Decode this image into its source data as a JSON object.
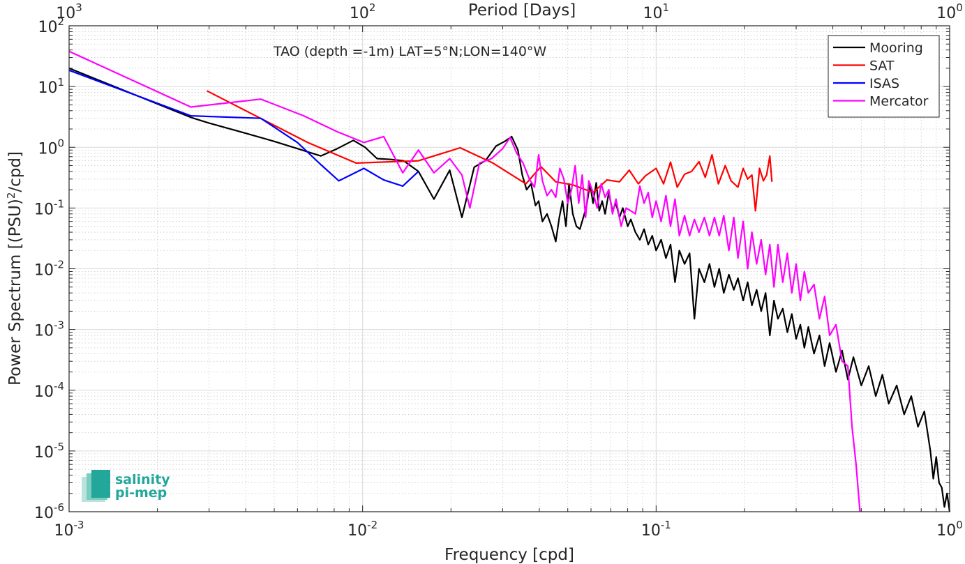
{
  "chart_data": {
    "type": "line",
    "title": "",
    "annotation": "TAO (depth =-1m) LAT=5°N;LON=140°W",
    "xlabel": "Frequency [cpd]",
    "ylabel_main": "Power Spectrum [(PSU)",
    "ylabel_sup": "2",
    "ylabel_tail": "/cpd]",
    "top_xlabel": "Period [Days]",
    "xscale": "log",
    "yscale": "log",
    "xlim": [
      0.001,
      1
    ],
    "ylim": [
      1e-06,
      100
    ],
    "top_xlim": [
      1000,
      1
    ],
    "grid": true,
    "minor_grid": true,
    "legend_position": "top-right",
    "x_ticks": [
      {
        "value": 0.001,
        "base": "10",
        "exp": "-3"
      },
      {
        "value": 0.01,
        "base": "10",
        "exp": "-2"
      },
      {
        "value": 0.1,
        "base": "10",
        "exp": "-1"
      },
      {
        "value": 1,
        "base": "10",
        "exp": "0"
      }
    ],
    "top_ticks": [
      {
        "value": 1000,
        "base": "10",
        "exp": "3"
      },
      {
        "value": 100,
        "base": "10",
        "exp": "2"
      },
      {
        "value": 10,
        "base": "10",
        "exp": "1"
      },
      {
        "value": 1,
        "base": "10",
        "exp": "0"
      }
    ],
    "y_ticks": [
      {
        "value": 100,
        "base": "10",
        "exp": "2"
      },
      {
        "value": 10,
        "base": "10",
        "exp": "1"
      },
      {
        "value": 1,
        "base": "10",
        "exp": "0"
      },
      {
        "value": 0.1,
        "base": "10",
        "exp": "-1"
      },
      {
        "value": 0.01,
        "base": "10",
        "exp": "-2"
      },
      {
        "value": 0.001,
        "base": "10",
        "exp": "-3"
      },
      {
        "value": 0.0001,
        "base": "10",
        "exp": "-4"
      },
      {
        "value": 1e-05,
        "base": "10",
        "exp": "-5"
      },
      {
        "value": 1e-06,
        "base": "10",
        "exp": "-6"
      }
    ],
    "series": [
      {
        "name": "Mooring",
        "color": "#000000",
        "points": [
          [
            0.001,
            20
          ],
          [
            0.0026,
            3.1
          ],
          [
            0.003,
            2.5
          ],
          [
            0.004,
            1.7
          ],
          [
            0.005,
            1.25
          ],
          [
            0.006,
            0.95
          ],
          [
            0.0072,
            0.72
          ],
          [
            0.0082,
            0.95
          ],
          [
            0.0093,
            1.3
          ],
          [
            0.0102,
            1.0
          ],
          [
            0.0112,
            0.65
          ],
          [
            0.0125,
            0.63
          ],
          [
            0.0138,
            0.6
          ],
          [
            0.0155,
            0.4
          ],
          [
            0.0175,
            0.14
          ],
          [
            0.0198,
            0.42
          ],
          [
            0.0218,
            0.07
          ],
          [
            0.024,
            0.47
          ],
          [
            0.0262,
            0.6
          ],
          [
            0.0285,
            1.05
          ],
          [
            0.0305,
            1.25
          ],
          [
            0.0322,
            1.5
          ],
          [
            0.0338,
            0.9
          ],
          [
            0.035,
            0.35
          ],
          [
            0.0362,
            0.2
          ],
          [
            0.0375,
            0.25
          ],
          [
            0.0388,
            0.11
          ],
          [
            0.0398,
            0.13
          ],
          [
            0.041,
            0.06
          ],
          [
            0.0425,
            0.08
          ],
          [
            0.044,
            0.05
          ],
          [
            0.0455,
            0.028
          ],
          [
            0.0468,
            0.07
          ],
          [
            0.048,
            0.13
          ],
          [
            0.0493,
            0.05
          ],
          [
            0.0505,
            0.25
          ],
          [
            0.052,
            0.08
          ],
          [
            0.0535,
            0.05
          ],
          [
            0.055,
            0.045
          ],
          [
            0.0565,
            0.07
          ],
          [
            0.058,
            0.11
          ],
          [
            0.0595,
            0.25
          ],
          [
            0.061,
            0.12
          ],
          [
            0.0625,
            0.26
          ],
          [
            0.064,
            0.09
          ],
          [
            0.0655,
            0.13
          ],
          [
            0.067,
            0.08
          ],
          [
            0.069,
            0.18
          ],
          [
            0.071,
            0.09
          ],
          [
            0.073,
            0.12
          ],
          [
            0.075,
            0.07
          ],
          [
            0.077,
            0.1
          ],
          [
            0.08,
            0.05
          ],
          [
            0.082,
            0.065
          ],
          [
            0.085,
            0.04
          ],
          [
            0.088,
            0.03
          ],
          [
            0.091,
            0.045
          ],
          [
            0.094,
            0.025
          ],
          [
            0.097,
            0.035
          ],
          [
            0.1,
            0.02
          ],
          [
            0.104,
            0.03
          ],
          [
            0.108,
            0.015
          ],
          [
            0.112,
            0.025
          ],
          [
            0.116,
            0.006
          ],
          [
            0.12,
            0.02
          ],
          [
            0.125,
            0.012
          ],
          [
            0.13,
            0.018
          ],
          [
            0.135,
            0.0015
          ],
          [
            0.14,
            0.01
          ],
          [
            0.146,
            0.006
          ],
          [
            0.152,
            0.012
          ],
          [
            0.158,
            0.005
          ],
          [
            0.164,
            0.01
          ],
          [
            0.17,
            0.004
          ],
          [
            0.177,
            0.008
          ],
          [
            0.184,
            0.0045
          ],
          [
            0.19,
            0.007
          ],
          [
            0.198,
            0.003
          ],
          [
            0.205,
            0.006
          ],
          [
            0.212,
            0.0025
          ],
          [
            0.22,
            0.0045
          ],
          [
            0.228,
            0.002
          ],
          [
            0.236,
            0.004
          ],
          [
            0.244,
            0.0008
          ],
          [
            0.252,
            0.003
          ],
          [
            0.26,
            0.0015
          ],
          [
            0.27,
            0.0022
          ],
          [
            0.28,
            0.0009
          ],
          [
            0.29,
            0.0018
          ],
          [
            0.3,
            0.0007
          ],
          [
            0.31,
            0.0012
          ],
          [
            0.32,
            0.0005
          ],
          [
            0.33,
            0.0011
          ],
          [
            0.345,
            0.0004
          ],
          [
            0.36,
            0.0008
          ],
          [
            0.375,
            0.00025
          ],
          [
            0.39,
            0.0006
          ],
          [
            0.41,
            0.0002
          ],
          [
            0.43,
            0.00045
          ],
          [
            0.45,
            0.00015
          ],
          [
            0.47,
            0.00035
          ],
          [
            0.5,
            0.00012
          ],
          [
            0.53,
            0.00025
          ],
          [
            0.56,
            8e-05
          ],
          [
            0.59,
            0.00018
          ],
          [
            0.62,
            6e-05
          ],
          [
            0.66,
            0.00012
          ],
          [
            0.7,
            4e-05
          ],
          [
            0.74,
            8e-05
          ],
          [
            0.78,
            2.5e-05
          ],
          [
            0.82,
            4.5e-05
          ],
          [
            0.86,
            1e-05
          ],
          [
            0.88,
            3.5e-06
          ],
          [
            0.9,
            8e-06
          ],
          [
            0.92,
            3e-06
          ],
          [
            0.94,
            2.5e-06
          ],
          [
            0.96,
            1.2e-06
          ],
          [
            0.98,
            2e-06
          ],
          [
            1.0,
            1e-06
          ]
        ]
      },
      {
        "name": "SAT",
        "color": "#ff0000",
        "points": [
          [
            0.00295,
            8.5
          ],
          [
            0.0065,
            1.2
          ],
          [
            0.0095,
            0.55
          ],
          [
            0.0155,
            0.6
          ],
          [
            0.0215,
            0.98
          ],
          [
            0.0278,
            0.55
          ],
          [
            0.036,
            0.25
          ],
          [
            0.0405,
            0.48
          ],
          [
            0.0455,
            0.27
          ],
          [
            0.052,
            0.24
          ],
          [
            0.061,
            0.18
          ],
          [
            0.068,
            0.29
          ],
          [
            0.075,
            0.27
          ],
          [
            0.081,
            0.42
          ],
          [
            0.087,
            0.25
          ],
          [
            0.092,
            0.34
          ],
          [
            0.1,
            0.45
          ],
          [
            0.106,
            0.25
          ],
          [
            0.112,
            0.57
          ],
          [
            0.118,
            0.22
          ],
          [
            0.125,
            0.36
          ],
          [
            0.132,
            0.4
          ],
          [
            0.14,
            0.58
          ],
          [
            0.147,
            0.32
          ],
          [
            0.155,
            0.75
          ],
          [
            0.163,
            0.25
          ],
          [
            0.172,
            0.5
          ],
          [
            0.18,
            0.28
          ],
          [
            0.19,
            0.22
          ],
          [
            0.198,
            0.45
          ],
          [
            0.205,
            0.3
          ],
          [
            0.212,
            0.35
          ],
          [
            0.218,
            0.09
          ],
          [
            0.225,
            0.45
          ],
          [
            0.232,
            0.28
          ],
          [
            0.238,
            0.35
          ],
          [
            0.244,
            0.72
          ],
          [
            0.248,
            0.27
          ]
        ]
      },
      {
        "name": "ISAS",
        "color": "#0000ff",
        "points": [
          [
            0.001,
            18.5
          ],
          [
            0.0026,
            3.3
          ],
          [
            0.0045,
            3.0
          ],
          [
            0.006,
            1.2
          ],
          [
            0.0072,
            0.52
          ],
          [
            0.0083,
            0.28
          ],
          [
            0.0101,
            0.45
          ],
          [
            0.0118,
            0.29
          ],
          [
            0.0137,
            0.23
          ],
          [
            0.0155,
            0.4
          ]
        ]
      },
      {
        "name": "Mercator",
        "color": "#ff00ff",
        "points": [
          [
            0.001,
            38
          ],
          [
            0.0026,
            4.6
          ],
          [
            0.0045,
            6.2
          ],
          [
            0.0063,
            3.3
          ],
          [
            0.0082,
            1.8
          ],
          [
            0.0101,
            1.2
          ],
          [
            0.0118,
            1.5
          ],
          [
            0.0137,
            0.38
          ],
          [
            0.0155,
            0.9
          ],
          [
            0.0175,
            0.38
          ],
          [
            0.0198,
            0.65
          ],
          [
            0.0218,
            0.35
          ],
          [
            0.0232,
            0.1
          ],
          [
            0.025,
            0.55
          ],
          [
            0.0275,
            0.65
          ],
          [
            0.03,
            0.95
          ],
          [
            0.0318,
            1.45
          ],
          [
            0.0335,
            0.8
          ],
          [
            0.0352,
            0.55
          ],
          [
            0.037,
            0.3
          ],
          [
            0.0385,
            0.22
          ],
          [
            0.0398,
            0.75
          ],
          [
            0.041,
            0.28
          ],
          [
            0.0425,
            0.16
          ],
          [
            0.044,
            0.2
          ],
          [
            0.0455,
            0.15
          ],
          [
            0.047,
            0.45
          ],
          [
            0.0485,
            0.3
          ],
          [
            0.05,
            0.12
          ],
          [
            0.0515,
            0.2
          ],
          [
            0.053,
            0.5
          ],
          [
            0.0545,
            0.12
          ],
          [
            0.056,
            0.35
          ],
          [
            0.0575,
            0.07
          ],
          [
            0.059,
            0.28
          ],
          [
            0.061,
            0.18
          ],
          [
            0.063,
            0.1
          ],
          [
            0.065,
            0.25
          ],
          [
            0.067,
            0.15
          ],
          [
            0.069,
            0.2
          ],
          [
            0.071,
            0.08
          ],
          [
            0.073,
            0.14
          ],
          [
            0.076,
            0.05
          ],
          [
            0.079,
            0.1
          ],
          [
            0.082,
            0.09
          ],
          [
            0.085,
            0.08
          ],
          [
            0.088,
            0.23
          ],
          [
            0.091,
            0.12
          ],
          [
            0.094,
            0.18
          ],
          [
            0.097,
            0.07
          ],
          [
            0.1,
            0.13
          ],
          [
            0.104,
            0.06
          ],
          [
            0.108,
            0.16
          ],
          [
            0.112,
            0.05
          ],
          [
            0.116,
            0.14
          ],
          [
            0.12,
            0.035
          ],
          [
            0.125,
            0.075
          ],
          [
            0.13,
            0.035
          ],
          [
            0.135,
            0.065
          ],
          [
            0.14,
            0.04
          ],
          [
            0.146,
            0.07
          ],
          [
            0.152,
            0.035
          ],
          [
            0.158,
            0.07
          ],
          [
            0.164,
            0.035
          ],
          [
            0.17,
            0.075
          ],
          [
            0.177,
            0.02
          ],
          [
            0.184,
            0.07
          ],
          [
            0.19,
            0.015
          ],
          [
            0.198,
            0.06
          ],
          [
            0.205,
            0.01
          ],
          [
            0.212,
            0.04
          ],
          [
            0.22,
            0.012
          ],
          [
            0.228,
            0.03
          ],
          [
            0.236,
            0.008
          ],
          [
            0.244,
            0.025
          ],
          [
            0.252,
            0.005
          ],
          [
            0.26,
            0.025
          ],
          [
            0.27,
            0.006
          ],
          [
            0.28,
            0.018
          ],
          [
            0.29,
            0.004
          ],
          [
            0.3,
            0.012
          ],
          [
            0.31,
            0.003
          ],
          [
            0.32,
            0.009
          ],
          [
            0.33,
            0.004
          ],
          [
            0.345,
            0.0055
          ],
          [
            0.36,
            0.0015
          ],
          [
            0.375,
            0.0035
          ],
          [
            0.39,
            0.0008
          ],
          [
            0.41,
            0.0012
          ],
          [
            0.43,
            0.0003
          ],
          [
            0.45,
            0.00025
          ],
          [
            0.465,
            2.5e-05
          ],
          [
            0.48,
            6e-06
          ],
          [
            0.495,
            1e-06
          ]
        ]
      }
    ]
  },
  "logo": {
    "line1": "salinity",
    "line2": "pi-mep",
    "color": "#22a79a"
  }
}
